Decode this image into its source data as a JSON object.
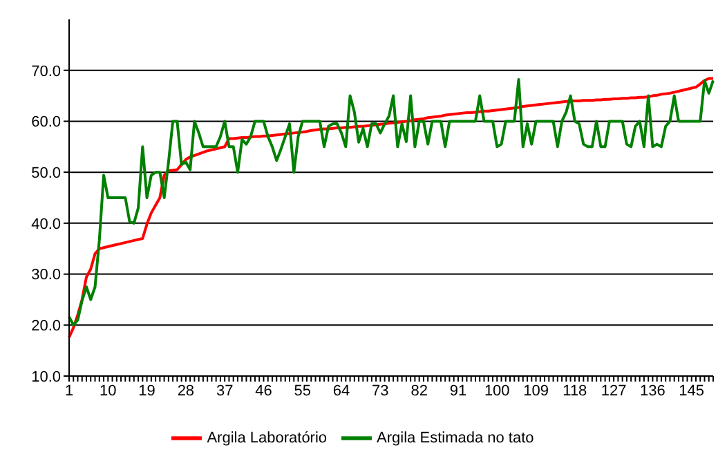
{
  "chart_data": {
    "type": "line",
    "categories": [
      "1",
      null,
      null,
      null,
      null,
      null,
      null,
      null,
      null,
      "10",
      null,
      null,
      null,
      null,
      null,
      null,
      null,
      null,
      "19",
      null,
      null,
      null,
      null,
      null,
      null,
      null,
      null,
      "28",
      null,
      null,
      null,
      null,
      null,
      null,
      null,
      null,
      "37",
      null,
      null,
      null,
      null,
      null,
      null,
      null,
      null,
      "46",
      null,
      null,
      null,
      null,
      null,
      null,
      null,
      null,
      "55",
      null,
      null,
      null,
      null,
      null,
      null,
      null,
      null,
      "64",
      null,
      null,
      null,
      null,
      null,
      null,
      null,
      null,
      "73",
      null,
      null,
      null,
      null,
      null,
      null,
      null,
      null,
      "82",
      null,
      null,
      null,
      null,
      null,
      null,
      null,
      null,
      "91",
      null,
      null,
      null,
      null,
      null,
      null,
      null,
      null,
      "100",
      null,
      null,
      null,
      null,
      null,
      null,
      null,
      null,
      "109",
      null,
      null,
      null,
      null,
      null,
      null,
      null,
      null,
      "118",
      null,
      null,
      null,
      null,
      null,
      null,
      null,
      null,
      "127",
      null,
      null,
      null,
      null,
      null,
      null,
      null,
      null,
      "136",
      null,
      null,
      null,
      null,
      null,
      null,
      null,
      null,
      "145",
      null,
      null,
      null,
      null,
      null
    ],
    "series": [
      {
        "name": "Argila Laboratório",
        "color": "#ff0000",
        "values": [
          17.6,
          19.5,
          22,
          25,
          29.4,
          31,
          34,
          35,
          35.2,
          35.4,
          35.6,
          35.8,
          36,
          36.2,
          36.4,
          36.6,
          36.8,
          37,
          39.8,
          42,
          43.5,
          45,
          49.4,
          50.3,
          50.4,
          50.5,
          51.5,
          52.5,
          53,
          53.3,
          53.6,
          53.9,
          54.2,
          54.4,
          54.6,
          54.8,
          55,
          56.6,
          56.6,
          56.7,
          56.8,
          56.8,
          56.9,
          57,
          57,
          57.1,
          57.1,
          57.2,
          57.3,
          57.4,
          57.5,
          57.6,
          57.7,
          57.8,
          57.9,
          58,
          58.2,
          58.3,
          58.4,
          58.5,
          58.5,
          58.6,
          58.7,
          58.7,
          58.8,
          58.8,
          58.9,
          59,
          59,
          59.1,
          59.2,
          59.3,
          59.4,
          59.5,
          59.6,
          59.7,
          59.8,
          59.9,
          60,
          60.1,
          60.3,
          60.4,
          60.5,
          60.7,
          60.8,
          60.9,
          61,
          61.2,
          61.3,
          61.4,
          61.5,
          61.6,
          61.7,
          61.7,
          61.8,
          61.9,
          62,
          62,
          62.1,
          62.2,
          62.3,
          62.4,
          62.5,
          62.6,
          62.7,
          62.9,
          63,
          63.1,
          63.2,
          63.3,
          63.4,
          63.5,
          63.6,
          63.7,
          63.8,
          63.9,
          64,
          64,
          64,
          64.1,
          64.1,
          64.1,
          64.2,
          64.2,
          64.3,
          64.3,
          64.4,
          64.4,
          64.5,
          64.5,
          64.6,
          64.6,
          64.7,
          64.7,
          64.8,
          65,
          65.1,
          65.3,
          65.4,
          65.5,
          65.7,
          65.9,
          66.1,
          66.3,
          66.5,
          66.7,
          67.3,
          68,
          68.4,
          68.4
        ]
      },
      {
        "name": "Argila Estimada no tato",
        "color": "#008000",
        "values": [
          21.6,
          20,
          21,
          24.8,
          27.5,
          25,
          27.5,
          36.7,
          49.4,
          45,
          45,
          45,
          45,
          45,
          40.3,
          40,
          43,
          55,
          45,
          49.4,
          50,
          50,
          45,
          52,
          60,
          60,
          51.5,
          52,
          50.5,
          60,
          57.7,
          55,
          55,
          55,
          55,
          57,
          60,
          55,
          55,
          50,
          56.4,
          55.5,
          57,
          60,
          60,
          60,
          57,
          55,
          52.3,
          54.5,
          57,
          59.5,
          50,
          57,
          60,
          60,
          60,
          60,
          60,
          55,
          59,
          59.5,
          59.5,
          57.7,
          55,
          65,
          61.8,
          55.9,
          58.6,
          55,
          59.5,
          59.5,
          57.7,
          59.5,
          61,
          65,
          55,
          59.5,
          56,
          65,
          55,
          60,
          60,
          55.5,
          60,
          60,
          60,
          55,
          60,
          60,
          60,
          60,
          60,
          60,
          60,
          65,
          60,
          60,
          60,
          55,
          55.5,
          60,
          60,
          60,
          68.2,
          55,
          59.5,
          55.5,
          60,
          60,
          60,
          60,
          60,
          55,
          60,
          61.8,
          65,
          60,
          59.5,
          55.5,
          55,
          55,
          60,
          55,
          55,
          60,
          60,
          60,
          60,
          55.5,
          55,
          59,
          60,
          55,
          65,
          55,
          55.5,
          55,
          59,
          60,
          65,
          60,
          60,
          60,
          60,
          60,
          60,
          68,
          65.5,
          68
        ]
      }
    ],
    "ylim": [
      10,
      80
    ],
    "yticks": [
      {
        "value": 10,
        "label": "10.0"
      },
      {
        "value": 20,
        "label": "20.0"
      },
      {
        "value": 30,
        "label": "30.0"
      },
      {
        "value": 40,
        "label": "40.0"
      },
      {
        "value": 50,
        "label": "50.0"
      },
      {
        "value": 60,
        "label": "60.0"
      },
      {
        "value": 70,
        "label": "70.0"
      }
    ],
    "grid": "y",
    "legend": "bottom",
    "marker": "none",
    "line_style": "solid"
  }
}
